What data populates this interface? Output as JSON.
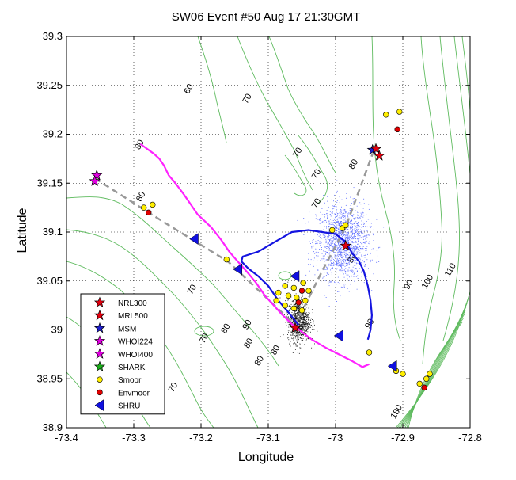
{
  "chart_data": {
    "type": "scatter",
    "title": "SW06 Event #50 Aug 17 21:30GMT",
    "xlabel": "Longitude",
    "ylabel": "Latitude",
    "xlim": [
      -73.4,
      -72.8
    ],
    "ylim": [
      38.9,
      39.3
    ],
    "xticks": [
      -73.4,
      -73.3,
      -73.2,
      -73.1,
      -73.0,
      -72.9,
      -72.8
    ],
    "yticks": [
      38.9,
      38.95,
      39.0,
      39.05,
      39.1,
      39.15,
      39.2,
      39.25,
      39.3
    ],
    "xtick_labels": [
      "-73.4",
      "-73.3",
      "-73.2",
      "-73.1",
      "-73",
      "-72.9",
      "-72.8"
    ],
    "ytick_labels": [
      "38.9",
      "38.95",
      "39",
      "39.05",
      "39.1",
      "39.15",
      "39.2",
      "39.25",
      "39.3"
    ],
    "grid": true,
    "legend_position": "bottom-left",
    "legend": [
      {
        "label": "NRL300",
        "marker": "star",
        "color": "#e4000f"
      },
      {
        "label": "MRL500",
        "marker": "star",
        "color": "#e4000f"
      },
      {
        "label": "MSM",
        "marker": "star",
        "color": "#1f1fd0"
      },
      {
        "label": "WHOI224",
        "marker": "star",
        "color": "#e000e0"
      },
      {
        "label": "WHOI400",
        "marker": "star",
        "color": "#e000e0"
      },
      {
        "label": "SHARK",
        "marker": "star",
        "color": "#1ab01a"
      },
      {
        "label": "Smoor",
        "marker": "circle",
        "color": "#ffee00"
      },
      {
        "label": "Envmoor",
        "marker": "circle",
        "color": "#e00000"
      },
      {
        "label": "SHRU",
        "marker": "triangle-left",
        "color": "#1010e0"
      }
    ],
    "contour_labels": [
      {
        "text": "60",
        "x": -73.215,
        "y": 39.245
      },
      {
        "text": "70",
        "x": -73.128,
        "y": 39.235
      },
      {
        "text": "70",
        "x": -73.053,
        "y": 39.18
      },
      {
        "text": "70",
        "x": -73.025,
        "y": 39.158
      },
      {
        "text": "70",
        "x": -73.025,
        "y": 39.128
      },
      {
        "text": "80",
        "x": -72.97,
        "y": 39.168
      },
      {
        "text": "80",
        "x": -73.286,
        "y": 39.135
      },
      {
        "text": "80",
        "x": -73.288,
        "y": 39.188
      },
      {
        "text": "70",
        "x": -73.21,
        "y": 39.04
      },
      {
        "text": "80",
        "x": -72.972,
        "y": 39.072
      },
      {
        "text": "90",
        "x": -72.888,
        "y": 39.045
      },
      {
        "text": "100",
        "x": -72.86,
        "y": 39.048
      },
      {
        "text": "110",
        "x": -72.826,
        "y": 39.06
      },
      {
        "text": "70",
        "x": -73.192,
        "y": 38.99
      },
      {
        "text": "80",
        "x": -73.16,
        "y": 39.0
      },
      {
        "text": "90",
        "x": -73.128,
        "y": 39.004
      },
      {
        "text": "80",
        "x": -73.126,
        "y": 38.985
      },
      {
        "text": "80",
        "x": -73.086,
        "y": 38.978
      },
      {
        "text": "80",
        "x": -73.11,
        "y": 38.967
      },
      {
        "text": "70",
        "x": -73.238,
        "y": 38.94
      },
      {
        "text": "90",
        "x": -72.946,
        "y": 39.005
      },
      {
        "text": "180",
        "x": -72.906,
        "y": 38.915
      }
    ],
    "ship_tracks": [
      {
        "name": "magenta-track",
        "color": "#ff22ff",
        "points": [
          [
            -73.29,
            39.19
          ],
          [
            -73.27,
            39.18
          ],
          [
            -73.262,
            39.175
          ],
          [
            -73.255,
            39.168
          ],
          [
            -73.248,
            39.158
          ],
          [
            -73.238,
            39.15
          ],
          [
            -73.225,
            39.138
          ],
          [
            -73.205,
            39.118
          ],
          [
            -73.185,
            39.105
          ],
          [
            -73.17,
            39.092
          ],
          [
            -73.158,
            39.08
          ],
          [
            -73.148,
            39.072
          ],
          [
            -73.13,
            39.058
          ],
          [
            -73.118,
            39.048
          ],
          [
            -73.105,
            39.035
          ],
          [
            -73.093,
            39.026
          ],
          [
            -73.08,
            39.016
          ],
          [
            -73.065,
            39.006
          ],
          [
            -73.05,
            38.998
          ],
          [
            -73.035,
            38.99
          ],
          [
            -73.015,
            38.982
          ],
          [
            -72.995,
            38.975
          ],
          [
            -72.975,
            38.968
          ],
          [
            -72.96,
            38.962
          ],
          [
            -72.95,
            38.965
          ]
        ]
      },
      {
        "name": "blue-track",
        "color": "#1414e0",
        "points": [
          [
            -73.055,
            39.005
          ],
          [
            -73.07,
            39.018
          ],
          [
            -73.085,
            39.03
          ],
          [
            -73.1,
            39.045
          ],
          [
            -73.115,
            39.055
          ],
          [
            -73.13,
            39.063
          ],
          [
            -73.14,
            39.07
          ],
          [
            -73.138,
            39.075
          ],
          [
            -73.115,
            39.08
          ],
          [
            -73.09,
            39.09
          ],
          [
            -73.065,
            39.1
          ],
          [
            -73.04,
            39.102
          ],
          [
            -73.02,
            39.1
          ],
          [
            -73.0,
            39.098
          ],
          [
            -72.985,
            39.09
          ],
          [
            -72.975,
            39.078
          ],
          [
            -72.965,
            39.07
          ],
          [
            -72.958,
            39.06
          ],
          [
            -72.952,
            39.045
          ],
          [
            -72.948,
            39.03
          ],
          [
            -72.946,
            39.015
          ],
          [
            -72.948,
            39.0
          ],
          [
            -72.952,
            38.99
          ]
        ]
      }
    ],
    "dashed_lines": [
      {
        "name": "west-leg",
        "color": "#999999",
        "points": [
          [
            -73.358,
            39.155
          ],
          [
            -73.255,
            39.11
          ],
          [
            -73.16,
            39.07
          ],
          [
            -73.06,
            39.005
          ]
        ]
      },
      {
        "name": "east-leg",
        "color": "#999999",
        "points": [
          [
            -73.06,
            39.005
          ],
          [
            -73.02,
            39.06
          ],
          [
            -72.985,
            39.105
          ],
          [
            -72.945,
            39.18
          ]
        ]
      }
    ],
    "point_clouds": [
      {
        "name": "blue-cloud",
        "color": "#5566ff",
        "center": [
          -72.99,
          39.09
        ],
        "spread": [
          0.035,
          0.035
        ],
        "count": 1600
      },
      {
        "name": "black-cloud",
        "color": "#111111",
        "center": [
          -73.055,
          39.01
        ],
        "spread": [
          0.015,
          0.02
        ],
        "count": 900
      }
    ],
    "markers": [
      {
        "series": "NRL300",
        "marker": "star",
        "color": "#e4000f",
        "x": -72.935,
        "y": 39.178
      },
      {
        "series": "NRL300",
        "marker": "star",
        "color": "#e4000f",
        "x": -72.985,
        "y": 39.086
      },
      {
        "series": "NRL300",
        "marker": "star",
        "color": "#e4000f",
        "x": -73.06,
        "y": 39.002
      },
      {
        "series": "MSM",
        "marker": "star",
        "color": "#1f1fd0",
        "x": -72.945,
        "y": 39.184
      },
      {
        "series": "MRL500",
        "marker": "star",
        "color": "#e4000f",
        "x": -72.94,
        "y": 39.185
      },
      {
        "series": "WHOI224",
        "marker": "star",
        "color": "#e000e0",
        "x": -73.355,
        "y": 39.158
      },
      {
        "series": "WHOI400",
        "marker": "star",
        "color": "#e000e0",
        "x": -73.358,
        "y": 39.152
      },
      {
        "series": "Smoor",
        "marker": "circle",
        "color": "#ffee00",
        "x": -72.925,
        "y": 39.22
      },
      {
        "series": "Smoor",
        "marker": "circle",
        "color": "#ffee00",
        "x": -72.905,
        "y": 39.223
      },
      {
        "series": "Smoor",
        "marker": "circle",
        "color": "#ffee00",
        "x": -73.285,
        "y": 39.125
      },
      {
        "series": "Smoor",
        "marker": "circle",
        "color": "#ffee00",
        "x": -73.272,
        "y": 39.128
      },
      {
        "series": "Smoor",
        "marker": "circle",
        "color": "#ffee00",
        "x": -73.162,
        "y": 39.072
      },
      {
        "series": "Smoor",
        "marker": "circle",
        "color": "#ffee00",
        "x": -73.005,
        "y": 39.102
      },
      {
        "series": "Smoor",
        "marker": "circle",
        "color": "#ffee00",
        "x": -72.99,
        "y": 39.104
      },
      {
        "series": "Smoor",
        "marker": "circle",
        "color": "#ffee00",
        "x": -72.985,
        "y": 39.107
      },
      {
        "series": "Smoor",
        "marker": "circle",
        "color": "#ffee00",
        "x": -73.075,
        "y": 39.045
      },
      {
        "series": "Smoor",
        "marker": "circle",
        "color": "#ffee00",
        "x": -73.062,
        "y": 39.043
      },
      {
        "series": "Smoor",
        "marker": "circle",
        "color": "#ffee00",
        "x": -73.048,
        "y": 39.048
      },
      {
        "series": "Smoor",
        "marker": "circle",
        "color": "#ffee00",
        "x": -73.04,
        "y": 39.04
      },
      {
        "series": "Smoor",
        "marker": "circle",
        "color": "#ffee00",
        "x": -73.085,
        "y": 39.038
      },
      {
        "series": "Smoor",
        "marker": "circle",
        "color": "#ffee00",
        "x": -73.07,
        "y": 39.035
      },
      {
        "series": "Smoor",
        "marker": "circle",
        "color": "#ffee00",
        "x": -73.058,
        "y": 39.033
      },
      {
        "series": "Smoor",
        "marker": "circle",
        "color": "#ffee00",
        "x": -73.045,
        "y": 39.03
      },
      {
        "series": "Smoor",
        "marker": "circle",
        "color": "#ffee00",
        "x": -73.088,
        "y": 39.03
      },
      {
        "series": "Smoor",
        "marker": "circle",
        "color": "#ffee00",
        "x": -73.075,
        "y": 39.025
      },
      {
        "series": "Smoor",
        "marker": "circle",
        "color": "#ffee00",
        "x": -73.062,
        "y": 39.022
      },
      {
        "series": "Smoor",
        "marker": "circle",
        "color": "#ffee00",
        "x": -73.05,
        "y": 39.02
      },
      {
        "series": "Smoor",
        "marker": "circle",
        "color": "#ffee00",
        "x": -72.95,
        "y": 38.977
      },
      {
        "series": "Smoor",
        "marker": "circle",
        "color": "#ffee00",
        "x": -72.91,
        "y": 38.958
      },
      {
        "series": "Smoor",
        "marker": "circle",
        "color": "#ffee00",
        "x": -72.9,
        "y": 38.955
      },
      {
        "series": "Smoor",
        "marker": "circle",
        "color": "#ffee00",
        "x": -72.875,
        "y": 38.945
      },
      {
        "series": "Smoor",
        "marker": "circle",
        "color": "#ffee00",
        "x": -72.865,
        "y": 38.95
      },
      {
        "series": "Smoor",
        "marker": "circle",
        "color": "#ffee00",
        "x": -72.86,
        "y": 38.955
      },
      {
        "series": "Envmoor",
        "marker": "circle",
        "color": "#e00000",
        "x": -72.908,
        "y": 39.205
      },
      {
        "series": "Envmoor",
        "marker": "circle",
        "color": "#e00000",
        "x": -73.278,
        "y": 39.12
      },
      {
        "series": "Envmoor",
        "marker": "circle",
        "color": "#e00000",
        "x": -73.05,
        "y": 39.04
      },
      {
        "series": "Envmoor",
        "marker": "circle",
        "color": "#e00000",
        "x": -73.055,
        "y": 39.028
      },
      {
        "series": "Envmoor",
        "marker": "circle",
        "color": "#e00000",
        "x": -72.868,
        "y": 38.941
      },
      {
        "series": "SHRU",
        "marker": "triangle-left",
        "color": "#1010e0",
        "x": -73.21,
        "y": 39.093
      },
      {
        "series": "SHRU",
        "marker": "triangle-left",
        "color": "#1010e0",
        "x": -73.145,
        "y": 39.062
      },
      {
        "series": "SHRU",
        "marker": "triangle-left",
        "color": "#1010e0",
        "x": -73.06,
        "y": 39.055
      },
      {
        "series": "SHRU",
        "marker": "triangle-left",
        "color": "#1010e0",
        "x": -72.995,
        "y": 38.994
      },
      {
        "series": "SHRU",
        "marker": "triangle-left",
        "color": "#1010e0",
        "x": -72.915,
        "y": 38.963
      }
    ]
  },
  "colors": {
    "contour": "#5fbb5f",
    "grid": "#000000",
    "axis": "#000000"
  }
}
